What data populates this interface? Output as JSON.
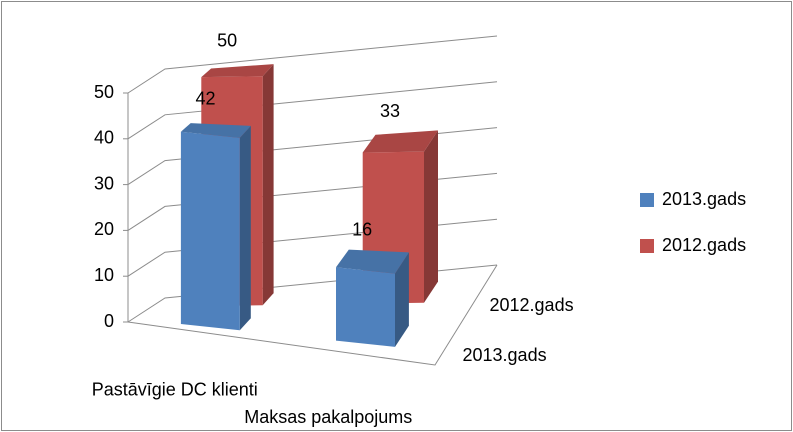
{
  "chart_data": {
    "type": "bar3d",
    "categories": [
      "Pastāvīgie DC klienti",
      "Maksas pakalpojums"
    ],
    "series": [
      {
        "name": "2013.gads",
        "color": "#4f81bd",
        "values": [
          42,
          16
        ]
      },
      {
        "name": "2012.gads",
        "color": "#c0504d",
        "values": [
          50,
          33
        ]
      }
    ],
    "ylim": [
      0,
      50
    ],
    "yticks": [
      0,
      10,
      20,
      30,
      40,
      50
    ],
    "grid": true,
    "legend": "right"
  }
}
